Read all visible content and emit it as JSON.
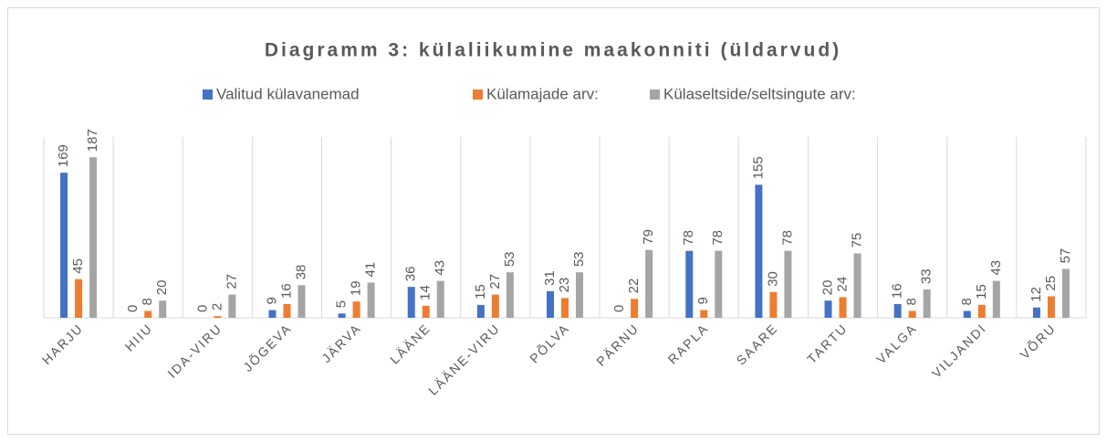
{
  "chart_data": {
    "type": "bar",
    "title": "Diagramm 3: külaliikumine maakonniti (üldarvud)",
    "categories": [
      "HARJU",
      "HIIU",
      "IDA-VIRU",
      "JÕGEVA",
      "JÄRVA",
      "LÄÄNE",
      "LÄÄNE-VIRU",
      "PÕLVA",
      "PÄRNU",
      "RAPLA",
      "SAARE",
      "TARTU",
      "VALGA",
      "VILJANDI",
      "VÕRU"
    ],
    "series": [
      {
        "name": "Valitud külavanemad",
        "color": "#4472c4",
        "values": [
          169,
          0,
          0,
          9,
          5,
          36,
          15,
          31,
          0,
          78,
          155,
          20,
          16,
          8,
          12
        ]
      },
      {
        "name": "Külamajade arv:",
        "color": "#ed7d31",
        "values": [
          45,
          8,
          2,
          16,
          19,
          14,
          27,
          23,
          22,
          9,
          30,
          24,
          8,
          15,
          25
        ]
      },
      {
        "name": "Külaseltside/seltsingute arv:",
        "color": "#a5a5a5",
        "values": [
          187,
          20,
          27,
          38,
          41,
          43,
          53,
          53,
          79,
          78,
          78,
          75,
          33,
          43,
          57
        ]
      }
    ],
    "ylim": [
      0,
      200
    ],
    "legend": "top"
  }
}
